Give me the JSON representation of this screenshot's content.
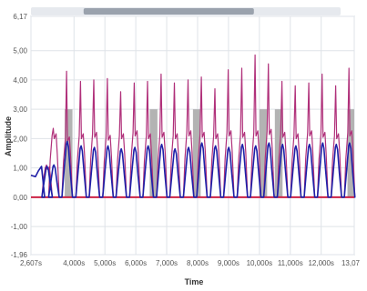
{
  "colors": {
    "background": "#ffffff",
    "plot_background": "#ffffff",
    "frame": "#a8b6c6",
    "grid": "#dfe3e8",
    "zero_line": "#cc2244",
    "scrollbar_track": "#e6e9ee",
    "scrollbar_thumb": "#9aa2ad",
    "marker_bar": "#b3b3b3",
    "series_magenta": "#b0307a",
    "series_blue": "#1d20a8"
  },
  "scrollbar": {
    "thumb_start": 0.17,
    "thumb_end": 0.72
  },
  "chart_data": {
    "type": "line",
    "title": "",
    "xlabel": "Time",
    "ylabel": "Amplitude",
    "xlim": [
      2.607,
      13.07
    ],
    "ylim": [
      -1.96,
      6.17
    ],
    "x_ticks": [
      {
        "value": 2.607,
        "label": "2,607s"
      },
      {
        "value": 4.0,
        "label": "4,000s"
      },
      {
        "value": 5.0,
        "label": "5,000s"
      },
      {
        "value": 6.0,
        "label": "6,000s"
      },
      {
        "value": 7.0,
        "label": "7,000s"
      },
      {
        "value": 8.0,
        "label": "8,000s"
      },
      {
        "value": 9.0,
        "label": "9,000s"
      },
      {
        "value": 10.0,
        "label": "10,000s"
      },
      {
        "value": 11.0,
        "label": "11,000s"
      },
      {
        "value": 12.0,
        "label": "12,000s"
      },
      {
        "value": 13.07,
        "label": "13,07"
      }
    ],
    "y_ticks": [
      {
        "value": 6.17,
        "label": "6,17"
      },
      {
        "value": 5.0,
        "label": "5,00"
      },
      {
        "value": 4.0,
        "label": "4,00"
      },
      {
        "value": 3.0,
        "label": "3,00"
      },
      {
        "value": 2.0,
        "label": "2,00"
      },
      {
        "value": 1.0,
        "label": "1,00"
      },
      {
        "value": 0.0,
        "label": "0,00"
      },
      {
        "value": -1.0,
        "label": "-1,00"
      },
      {
        "value": -1.96,
        "label": "-1,96"
      }
    ],
    "grid": true,
    "marker_bars": [
      {
        "x0": 3.7,
        "x1": 3.95,
        "height": 3.0
      },
      {
        "x0": 6.45,
        "x1": 6.7,
        "height": 3.0
      },
      {
        "x0": 7.85,
        "x1": 8.1,
        "height": 3.0
      },
      {
        "x0": 10.0,
        "x1": 10.25,
        "height": 3.0
      },
      {
        "x0": 10.5,
        "x1": 10.75,
        "height": 3.0
      },
      {
        "x0": 12.85,
        "x1": 13.07,
        "height": 3.0
      }
    ],
    "pulses": {
      "peak_times": [
        3.13,
        3.35,
        3.78,
        4.23,
        4.66,
        5.1,
        5.53,
        5.97,
        6.4,
        6.84,
        7.27,
        7.71,
        8.14,
        8.58,
        9.01,
        9.45,
        9.88,
        10.31,
        10.75,
        11.18,
        11.62,
        12.05,
        12.49,
        12.92
      ],
      "blue_peaks": [
        1.05,
        1.1,
        1.9,
        1.75,
        1.7,
        1.75,
        1.65,
        1.7,
        1.75,
        1.8,
        1.65,
        1.7,
        1.85,
        1.75,
        1.7,
        1.8,
        1.75,
        1.85,
        1.8,
        1.75,
        1.8,
        1.85,
        1.8,
        1.85
      ],
      "magenta_spikes": [
        1.1,
        2.35,
        4.3,
        3.95,
        4.0,
        4.05,
        3.6,
        3.9,
        3.95,
        4.2,
        3.9,
        4.0,
        4.1,
        3.7,
        4.35,
        4.4,
        4.85,
        4.55,
        3.95,
        3.8,
        3.9,
        4.2,
        3.8,
        4.4
      ],
      "magenta_plateau": [
        1.0,
        2.1,
        2.0,
        2.1,
        2.15,
        2.05,
        2.1,
        2.2,
        2.1,
        2.15,
        2.1,
        2.2,
        2.15,
        2.1,
        2.2,
        2.15,
        2.2,
        2.25,
        2.15,
        2.1,
        2.2,
        2.15,
        2.1,
        2.2
      ]
    },
    "series": [
      {
        "key": "magenta"
      },
      {
        "key": "blue"
      }
    ]
  }
}
